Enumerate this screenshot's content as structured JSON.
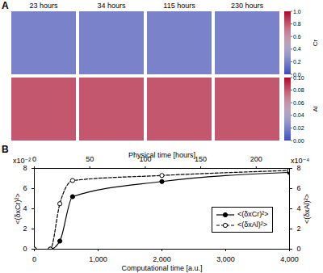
{
  "panel_a": {
    "label": "A",
    "times": [
      "23 hours",
      "34 hours",
      "115 hours",
      "230 hours"
    ],
    "rows": [
      {
        "field": "Cr",
        "matrix_value": 0.2,
        "colorbar": {
          "range": [
            0,
            1
          ],
          "ticks": [
            {
              "value": 0,
              "label": "0.0"
            },
            {
              "value": 0.2,
              "label": "0.2"
            },
            {
              "value": 0.4,
              "label": "0.4"
            },
            {
              "value": 0.6,
              "label": "0.6"
            },
            {
              "value": 0.8,
              "label": "0.8"
            },
            {
              "value": 1,
              "label": "1.0"
            }
          ]
        }
      },
      {
        "field": "Al",
        "matrix_value": 0.08,
        "colorbar": {
          "range": [
            0,
            0.1
          ],
          "ticks": [
            {
              "value": 0,
              "label": "0.00"
            },
            {
              "value": 0.02,
              "label": "0.02"
            },
            {
              "value": 0.04,
              "label": "0.04"
            },
            {
              "value": 0.06,
              "label": "0.06"
            },
            {
              "value": 0.08,
              "label": "0.08"
            },
            {
              "value": 0.1,
              "label": "0.10"
            }
          ]
        }
      }
    ]
  },
  "chart_data": {
    "type": "line",
    "label": "B",
    "x_label": "Computational time [a.u.]",
    "x2_label": "Physical time [hours]",
    "x": [
      0,
      250,
      400,
      600,
      2000,
      4000
    ],
    "xlim": [
      0,
      4000
    ],
    "xticks": [
      0,
      1000,
      2000,
      3000,
      4000
    ],
    "x2lim": [
      0,
      230
    ],
    "x2ticks": [
      0,
      50,
      100,
      150,
      200
    ],
    "y_label": "<(δxCr)²>",
    "y_multiplier": "x10⁻²",
    "ylim": [
      0,
      8
    ],
    "yticks": [
      0,
      2,
      4,
      6,
      8
    ],
    "y2_label": "<(δxAl)²>",
    "y2_multiplier": "x10⁻⁴",
    "y2lim": [
      0,
      8
    ],
    "y2ticks": [
      0,
      2,
      4,
      6,
      8
    ],
    "legend": "right",
    "series": [
      {
        "name": "<(δxCr)²>",
        "color": "#000000",
        "marker": "filled",
        "line_style": "solid",
        "values": [
          0,
          0,
          0.8,
          5.2,
          6.7,
          7.6
        ]
      },
      {
        "name": "<(δxAl)²>",
        "color": "#000000",
        "marker": "open",
        "line_style": "dashed",
        "axis": "y2",
        "values": [
          0,
          0,
          4.5,
          6.8,
          7.3,
          7.8
        ]
      }
    ]
  }
}
